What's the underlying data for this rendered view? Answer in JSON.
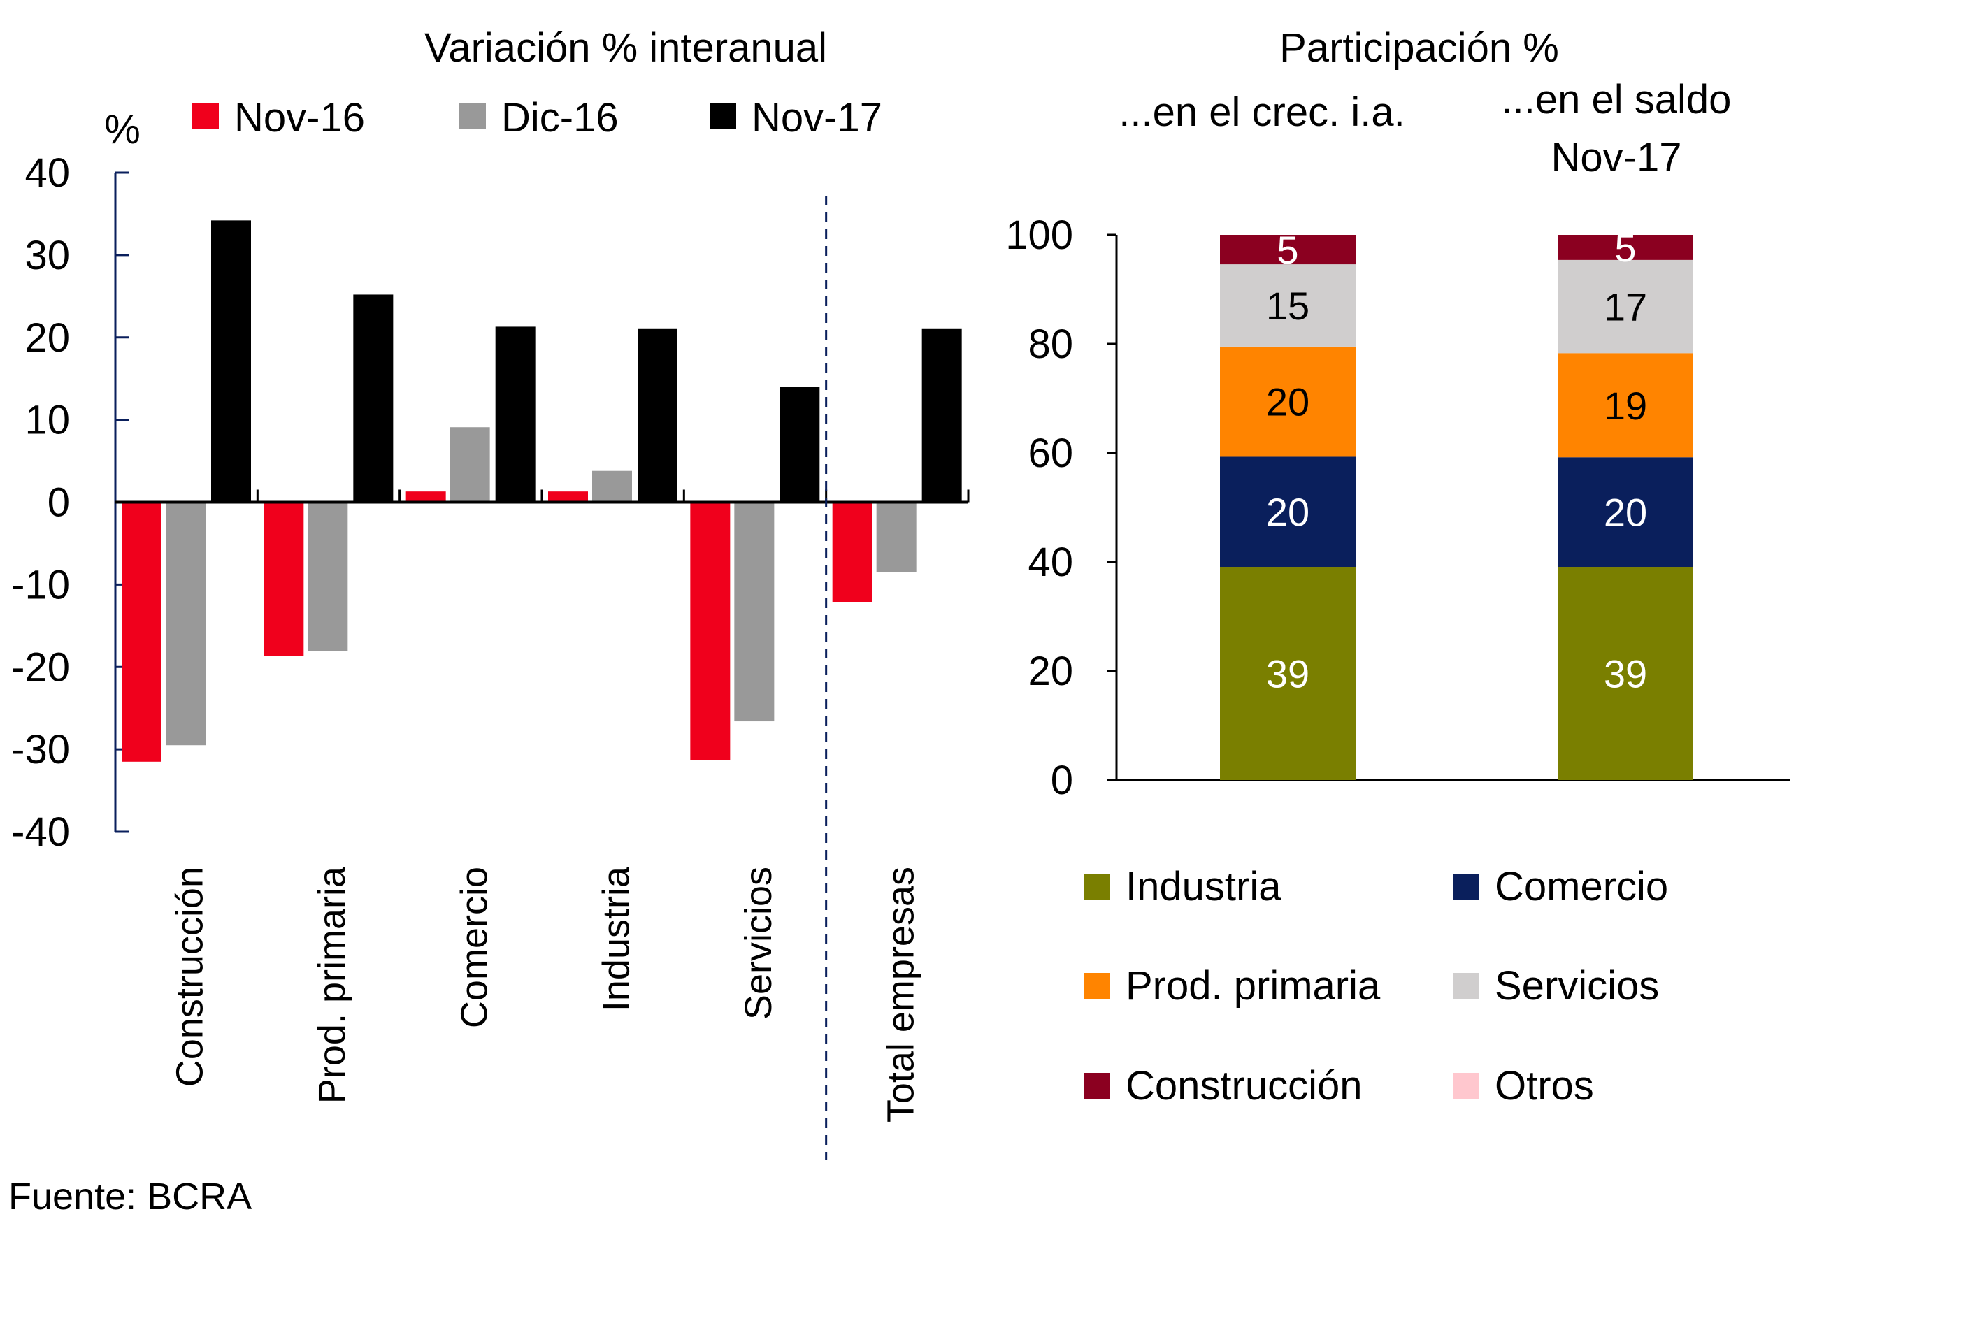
{
  "chart_data": [
    {
      "type": "bar",
      "title": "Variación  % interanual",
      "ylabel": "%",
      "xlabel": "",
      "ylim": [
        -40,
        40
      ],
      "yticks": [
        40,
        30,
        20,
        10,
        0,
        -10,
        -20,
        -30,
        -40
      ],
      "grid": false,
      "legend_position": "top",
      "categories": [
        "Construcción",
        "Prod. primaria",
        "Comercio",
        "Industria",
        "Servicios",
        "Total empresas"
      ],
      "separator_before_category": "Total empresas",
      "series": [
        {
          "name": "Nov-16",
          "color": "#f0001c",
          "values": [
            -31.5,
            -18.7,
            1.3,
            1.3,
            -31.3,
            -12.1
          ]
        },
        {
          "name": "Dic-16",
          "color": "#999999",
          "values": [
            -29.5,
            -18.1,
            9.1,
            3.8,
            -26.6,
            -8.5
          ]
        },
        {
          "name": "Nov-17",
          "color": "#000000",
          "values": [
            34.2,
            25.2,
            21.3,
            21.1,
            14.0,
            21.1
          ]
        }
      ]
    },
    {
      "type": "bar",
      "stacked": true,
      "title": "Participación %",
      "ylim": [
        0,
        100
      ],
      "yticks": [
        100,
        80,
        60,
        40,
        20,
        0
      ],
      "grid": false,
      "legend_position": "bottom",
      "categories": [
        "...en el crec. i.a.",
        "...en el saldo Nov-17"
      ],
      "category_label_lines": [
        [
          "...en el crec. i.a."
        ],
        [
          "...en el saldo",
          "Nov-17"
        ]
      ],
      "series": [
        {
          "name": "Industria",
          "color": "#7a7f00",
          "label_color": "#ffffff",
          "values": [
            39.1,
            39.1
          ],
          "labels": [
            "39",
            "39"
          ]
        },
        {
          "name": "Comercio",
          "color": "#0a1f5c",
          "label_color": "#ffffff",
          "values": [
            20.2,
            20.1
          ],
          "labels": [
            "20",
            "20"
          ]
        },
        {
          "name": "Prod. primaria",
          "color": "#ff8400",
          "label_color": "#000000",
          "values": [
            20.2,
            19.1
          ],
          "labels": [
            "20",
            "19"
          ]
        },
        {
          "name": "Servicios",
          "color": "#d0cece",
          "label_color": "#000000",
          "values": [
            15.1,
            17.1
          ],
          "labels": [
            "15",
            "17"
          ]
        },
        {
          "name": "Construcción",
          "color": "#8b0020",
          "label_color": "#ffffff",
          "values": [
            5.4,
            4.6
          ],
          "labels": [
            "5",
            "5"
          ]
        },
        {
          "name": "Otros",
          "color": "#ffc7ce",
          "label_color": "#000000",
          "values": [
            0,
            0
          ],
          "labels": [
            "",
            ""
          ]
        }
      ],
      "legend_order": [
        "Industria",
        "Comercio",
        "Prod. primaria",
        "Servicios",
        "Construcción",
        "Otros"
      ]
    }
  ],
  "source": "Fuente:  BCRA"
}
